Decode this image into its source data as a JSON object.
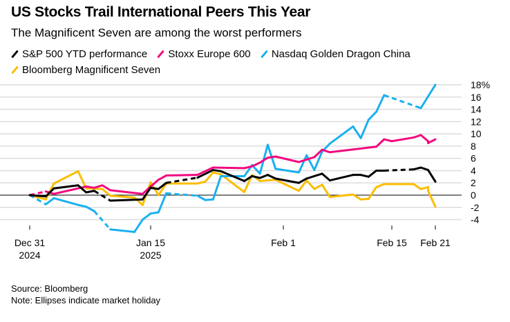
{
  "title": "US Stocks Trail International Peers This Year",
  "subtitle": "The Magnificent Seven are among the worst performers",
  "source": "Source: Bloomberg",
  "note": "Note: Ellipses indicate market holiday",
  "chart_data": {
    "type": "line",
    "ylabel": "",
    "yunit": "%",
    "ylim": [
      -4,
      18
    ],
    "yticks": [
      -4,
      -2,
      0,
      2,
      4,
      6,
      8,
      10,
      12,
      14,
      16,
      18
    ],
    "ytick_labels": [
      "-4",
      "-2",
      "0",
      "2",
      "4",
      "6",
      "8",
      "10",
      "12",
      "14",
      "16",
      "18%"
    ],
    "xticks": [
      {
        "date": "2024-12-31",
        "line1": "Dec 31",
        "line2": "2024"
      },
      {
        "date": "2025-01-15",
        "line1": "Jan 15",
        "line2": "2025"
      },
      {
        "date": "2025-02-01",
        "line1": "Feb 1",
        "line2": ""
      },
      {
        "date": "2025-02-15",
        "line1": "Feb 15",
        "line2": ""
      },
      {
        "date": "2025-02-21",
        "line1": "Feb 21",
        "line2": ""
      }
    ],
    "grid": true,
    "legend_placement": "top",
    "series": [
      {
        "name": "S&P 500 YTD performance",
        "color": "#000000",
        "points": [
          [
            "2024-12-31",
            0
          ],
          [
            "2025-01-02",
            -0.2
          ],
          [
            "2025-01-03",
            1.1
          ],
          [
            "2025-01-06",
            1.6
          ],
          [
            "2025-01-07",
            0.45
          ],
          [
            "2025-01-08",
            0.7
          ],
          [
            "2025-01-10",
            -0.9
          ],
          [
            "2025-01-14",
            -0.7
          ],
          [
            "2025-01-15",
            1.2
          ],
          [
            "2025-01-16",
            1.0
          ],
          [
            "2025-01-17",
            2.0
          ],
          [
            "2025-01-21",
            2.85
          ],
          [
            "2025-01-23",
            4.1
          ],
          [
            "2025-01-24",
            3.9
          ],
          [
            "2025-01-27",
            2.3
          ],
          [
            "2025-01-28",
            3.1
          ],
          [
            "2025-01-29",
            2.8
          ],
          [
            "2025-01-30",
            3.3
          ],
          [
            "2025-01-31",
            2.7
          ],
          [
            "2025-02-03",
            2.0
          ],
          [
            "2025-02-04",
            2.7
          ],
          [
            "2025-02-06",
            3.5
          ],
          [
            "2025-02-07",
            2.4
          ],
          [
            "2025-02-10",
            3.3
          ],
          [
            "2025-02-11",
            3.3
          ],
          [
            "2025-02-12",
            3.0
          ],
          [
            "2025-02-13",
            4.0
          ],
          [
            "2025-02-14",
            4.0
          ],
          [
            "2025-02-18",
            4.2
          ],
          [
            "2025-02-19",
            4.5
          ],
          [
            "2025-02-20",
            4.1
          ],
          [
            "2025-02-21",
            2.2
          ]
        ],
        "dashed_segments": [
          [
            "2025-01-08",
            "2025-01-10"
          ],
          [
            "2025-01-17",
            "2025-01-21"
          ],
          [
            "2025-02-14",
            "2025-02-18"
          ]
        ]
      },
      {
        "name": "Stoxx Europe 600",
        "color": "#f2087e",
        "points": [
          [
            "2024-12-31",
            0
          ],
          [
            "2025-01-02",
            0.6
          ],
          [
            "2025-01-03",
            0.2
          ],
          [
            "2025-01-07",
            1.4
          ],
          [
            "2025-01-08",
            1.2
          ],
          [
            "2025-01-09",
            1.6
          ],
          [
            "2025-01-10",
            0.8
          ],
          [
            "2025-01-14",
            0.2
          ],
          [
            "2025-01-15",
            1.4
          ],
          [
            "2025-01-16",
            2.5
          ],
          [
            "2025-01-17",
            3.2
          ],
          [
            "2025-01-21",
            3.3
          ],
          [
            "2025-01-23",
            4.5
          ],
          [
            "2025-01-27",
            4.4
          ],
          [
            "2025-01-28",
            4.7
          ],
          [
            "2025-01-29",
            5.3
          ],
          [
            "2025-01-30",
            6.1
          ],
          [
            "2025-01-31",
            6.3
          ],
          [
            "2025-02-03",
            5.4
          ],
          [
            "2025-02-04",
            5.8
          ],
          [
            "2025-02-05",
            6.2
          ],
          [
            "2025-02-06",
            7.4
          ],
          [
            "2025-02-07",
            7.0
          ],
          [
            "2025-02-13",
            7.9
          ],
          [
            "2025-02-14",
            9.1
          ],
          [
            "2025-02-15",
            8.8
          ],
          [
            "2025-02-18",
            9.4
          ],
          [
            "2025-02-19",
            9.8
          ],
          [
            "2025-02-20",
            8.8
          ],
          [
            "2025-02-20",
            8.5
          ],
          [
            "2025-02-21",
            9.1
          ]
        ],
        "dashed_segments": [
          [
            "2024-12-31",
            "2025-01-02"
          ]
        ]
      },
      {
        "name": "Nasdaq Golden Dragon China",
        "color": "#1ab0f0",
        "points": [
          [
            "2024-12-31",
            0
          ],
          [
            "2025-01-02",
            -1.5
          ],
          [
            "2025-01-03",
            -0.5
          ],
          [
            "2025-01-06",
            -1.6
          ],
          [
            "2025-01-07",
            -1.9
          ],
          [
            "2025-01-08",
            -2.6
          ],
          [
            "2025-01-10",
            -5.6
          ],
          [
            "2025-01-13",
            -6.0
          ],
          [
            "2025-01-14",
            -4.0
          ],
          [
            "2025-01-15",
            -3.0
          ],
          [
            "2025-01-16",
            -2.8
          ],
          [
            "2025-01-17",
            0.3
          ],
          [
            "2025-01-21",
            -0.1
          ],
          [
            "2025-01-22",
            -0.8
          ],
          [
            "2025-01-23",
            -0.7
          ],
          [
            "2025-01-24",
            3.1
          ],
          [
            "2025-01-27",
            3.1
          ],
          [
            "2025-01-28",
            4.9
          ],
          [
            "2025-01-29",
            3.5
          ],
          [
            "2025-01-30",
            8.2
          ],
          [
            "2025-01-31",
            4.3
          ],
          [
            "2025-02-03",
            3.7
          ],
          [
            "2025-02-04",
            6.5
          ],
          [
            "2025-02-05",
            4.1
          ],
          [
            "2025-02-06",
            7.1
          ],
          [
            "2025-02-07",
            8.4
          ],
          [
            "2025-02-10",
            11.2
          ],
          [
            "2025-02-11",
            9.3
          ],
          [
            "2025-02-12",
            12.3
          ],
          [
            "2025-02-13",
            13.6
          ],
          [
            "2025-02-14",
            16.3
          ],
          [
            "2025-02-19",
            14.2
          ],
          [
            "2025-02-21",
            18.0
          ]
        ],
        "dashed_segments": [
          [
            "2024-12-31",
            "2025-01-02"
          ],
          [
            "2025-01-08",
            "2025-01-10"
          ],
          [
            "2025-01-17",
            "2025-01-21"
          ],
          [
            "2025-02-14",
            "2025-02-19"
          ]
        ]
      },
      {
        "name": "Bloomberg Magnificent Seven",
        "color": "#fbbd00",
        "points": [
          [
            "2024-12-31",
            0
          ],
          [
            "2025-01-02",
            -0.7
          ],
          [
            "2025-01-03",
            1.9
          ],
          [
            "2025-01-06",
            3.9
          ],
          [
            "2025-01-07",
            1.1
          ],
          [
            "2025-01-09",
            1.0
          ],
          [
            "2025-01-10",
            -0.1
          ],
          [
            "2025-01-13",
            -0.4
          ],
          [
            "2025-01-14",
            -1.6
          ],
          [
            "2025-01-15",
            2.1
          ],
          [
            "2025-01-16",
            0.0
          ],
          [
            "2025-01-17",
            1.9
          ],
          [
            "2025-01-21",
            1.9
          ],
          [
            "2025-01-22",
            2.2
          ],
          [
            "2025-01-23",
            3.7
          ],
          [
            "2025-01-24",
            3.4
          ],
          [
            "2025-01-27",
            0.5
          ],
          [
            "2025-01-28",
            3.3
          ],
          [
            "2025-01-29",
            2.3
          ],
          [
            "2025-01-31",
            2.5
          ],
          [
            "2025-02-03",
            0.7
          ],
          [
            "2025-02-04",
            2.4
          ],
          [
            "2025-02-05",
            1.0
          ],
          [
            "2025-02-06",
            1.7
          ],
          [
            "2025-02-07",
            -0.3
          ],
          [
            "2025-02-10",
            0.1
          ],
          [
            "2025-02-11",
            -0.7
          ],
          [
            "2025-02-12",
            -0.6
          ],
          [
            "2025-02-13",
            1.3
          ],
          [
            "2025-02-14",
            1.8
          ],
          [
            "2025-02-18",
            1.8
          ],
          [
            "2025-02-19",
            1.0
          ],
          [
            "2025-02-20",
            1.3
          ],
          [
            "2025-02-20",
            0.7
          ],
          [
            "2025-02-21",
            -1.9
          ]
        ],
        "dashed_segments": []
      }
    ],
    "legend_order": [
      0,
      1,
      2,
      3
    ]
  }
}
